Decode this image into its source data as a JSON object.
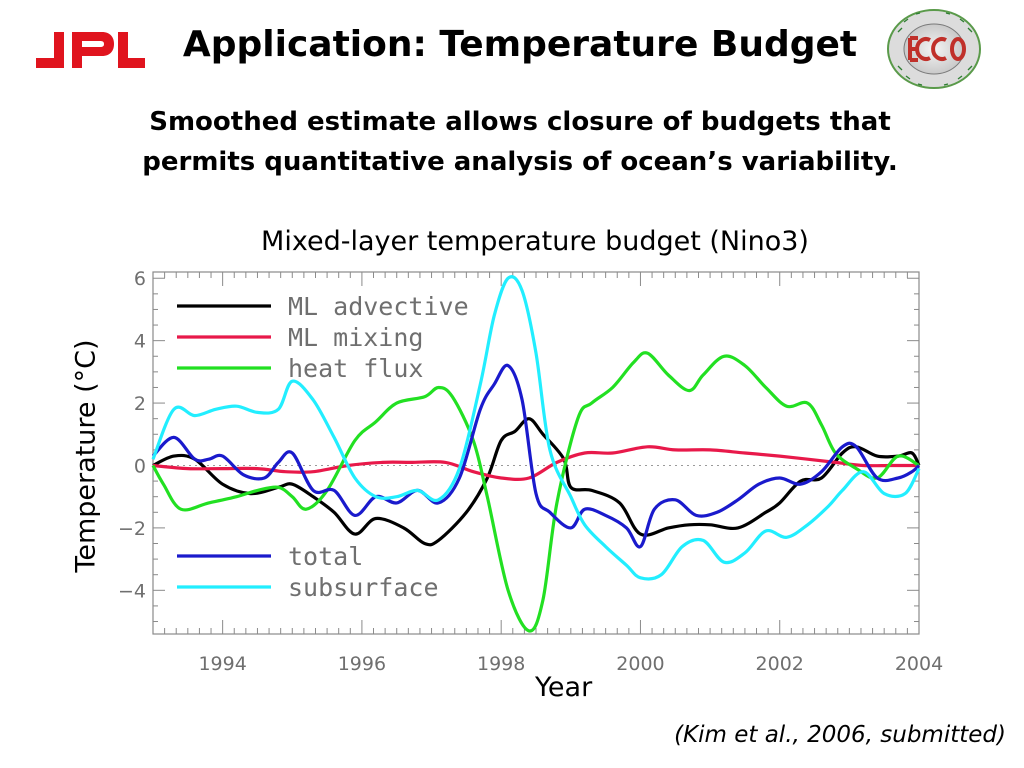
{
  "header": {
    "logo_text": "JPL",
    "seal_text": "ECCO",
    "title": "Application: Temperature Budget"
  },
  "subtitle_lines": [
    "Smoothed estimate allows closure of budgets that",
    "permits quantitative analysis of ocean’s variability."
  ],
  "citation": "(Kim et al., 2006, submitted)",
  "colors": {
    "ml_advective": "#000000",
    "ml_mixing": "#e8194a",
    "heat_flux": "#22e022",
    "total": "#1a1acc",
    "subsurface": "#22eeff",
    "jpl_red": "#e0141e"
  },
  "chart_data": {
    "type": "line",
    "title": "Mixed-layer temperature budget (Nino3)",
    "xlabel": "Year",
    "ylabel": "Temperature (°C)",
    "xlim": [
      1993.0,
      2004.0
    ],
    "ylim": [
      -5.4,
      6.2
    ],
    "x_ticks": [
      1994,
      1996,
      1998,
      2000,
      2002,
      2004
    ],
    "y_ticks": [
      6,
      4,
      2,
      0,
      -2,
      -4
    ],
    "grid": false,
    "zero_line": "dotted",
    "legend": [
      {
        "position": "upper-left",
        "entries": [
          "ML advective",
          "ML mixing",
          "heat flux"
        ]
      },
      {
        "position": "lower-left",
        "entries": [
          "total",
          "subsurface"
        ]
      }
    ],
    "series": [
      {
        "name": "ML advective",
        "key": "ml_advective",
        "points": [
          [
            1993.0,
            0.0
          ],
          [
            1993.3,
            0.3
          ],
          [
            1993.6,
            0.2
          ],
          [
            1994.0,
            -0.6
          ],
          [
            1994.4,
            -0.9
          ],
          [
            1994.8,
            -0.7
          ],
          [
            1995.0,
            -0.6
          ],
          [
            1995.3,
            -1.0
          ],
          [
            1995.6,
            -1.5
          ],
          [
            1995.9,
            -2.2
          ],
          [
            1996.2,
            -1.7
          ],
          [
            1996.6,
            -2.0
          ],
          [
            1996.9,
            -2.5
          ],
          [
            1997.1,
            -2.4
          ],
          [
            1997.5,
            -1.5
          ],
          [
            1997.8,
            -0.4
          ],
          [
            1998.0,
            0.8
          ],
          [
            1998.2,
            1.1
          ],
          [
            1998.4,
            1.5
          ],
          [
            1998.6,
            1.0
          ],
          [
            1998.9,
            0.2
          ],
          [
            1999.0,
            -0.7
          ],
          [
            1999.3,
            -0.8
          ],
          [
            1999.7,
            -1.2
          ],
          [
            2000.0,
            -2.2
          ],
          [
            2000.4,
            -2.0
          ],
          [
            2000.7,
            -1.9
          ],
          [
            2001.0,
            -1.9
          ],
          [
            2001.4,
            -2.0
          ],
          [
            2001.8,
            -1.5
          ],
          [
            2002.0,
            -1.2
          ],
          [
            2002.3,
            -0.5
          ],
          [
            2002.6,
            -0.4
          ],
          [
            2002.9,
            0.4
          ],
          [
            2003.1,
            0.6
          ],
          [
            2003.4,
            0.3
          ],
          [
            2003.7,
            0.3
          ],
          [
            2003.9,
            0.4
          ],
          [
            2004.0,
            0.0
          ]
        ]
      },
      {
        "name": "ML mixing",
        "key": "ml_mixing",
        "points": [
          [
            1993.0,
            0.0
          ],
          [
            1993.5,
            -0.1
          ],
          [
            1994.0,
            -0.1
          ],
          [
            1994.5,
            -0.1
          ],
          [
            1994.9,
            -0.2
          ],
          [
            1995.3,
            -0.2
          ],
          [
            1995.8,
            0.0
          ],
          [
            1996.3,
            0.1
          ],
          [
            1996.7,
            0.1
          ],
          [
            1997.2,
            0.1
          ],
          [
            1997.6,
            -0.2
          ],
          [
            1998.0,
            -0.4
          ],
          [
            1998.4,
            -0.4
          ],
          [
            1998.8,
            0.1
          ],
          [
            1999.2,
            0.4
          ],
          [
            1999.6,
            0.4
          ],
          [
            2000.1,
            0.6
          ],
          [
            2000.5,
            0.5
          ],
          [
            2001.0,
            0.5
          ],
          [
            2001.5,
            0.4
          ],
          [
            2002.0,
            0.3
          ],
          [
            2002.4,
            0.2
          ],
          [
            2002.8,
            0.1
          ],
          [
            2003.2,
            0.0
          ],
          [
            2003.6,
            0.0
          ],
          [
            2004.0,
            0.0
          ]
        ]
      },
      {
        "name": "heat flux",
        "key": "heat_flux",
        "points": [
          [
            1993.0,
            0.0
          ],
          [
            1993.15,
            -0.6
          ],
          [
            1993.4,
            -1.4
          ],
          [
            1993.8,
            -1.2
          ],
          [
            1994.2,
            -1.0
          ],
          [
            1994.5,
            -0.8
          ],
          [
            1994.8,
            -0.7
          ],
          [
            1995.0,
            -1.0
          ],
          [
            1995.2,
            -1.4
          ],
          [
            1995.5,
            -0.8
          ],
          [
            1995.9,
            0.8
          ],
          [
            1996.2,
            1.4
          ],
          [
            1996.5,
            2.0
          ],
          [
            1996.9,
            2.2
          ],
          [
            1997.1,
            2.5
          ],
          [
            1997.3,
            2.2
          ],
          [
            1997.6,
            0.8
          ],
          [
            1997.8,
            -1.0
          ],
          [
            1998.1,
            -4.0
          ],
          [
            1998.4,
            -5.3
          ],
          [
            1998.6,
            -4.3
          ],
          [
            1998.8,
            -1.2
          ],
          [
            1999.1,
            1.5
          ],
          [
            1999.3,
            2.0
          ],
          [
            1999.6,
            2.5
          ],
          [
            1999.9,
            3.3
          ],
          [
            2000.1,
            3.6
          ],
          [
            2000.4,
            2.9
          ],
          [
            2000.7,
            2.4
          ],
          [
            2000.9,
            2.9
          ],
          [
            2001.2,
            3.5
          ],
          [
            2001.5,
            3.2
          ],
          [
            2001.8,
            2.5
          ],
          [
            2002.1,
            1.9
          ],
          [
            2002.4,
            2.0
          ],
          [
            2002.6,
            1.3
          ],
          [
            2002.8,
            0.4
          ],
          [
            2003.1,
            -0.1
          ],
          [
            2003.4,
            -0.4
          ],
          [
            2003.7,
            0.3
          ],
          [
            2004.0,
            0.0
          ]
        ]
      },
      {
        "name": "total",
        "key": "total",
        "points": [
          [
            1993.0,
            0.3
          ],
          [
            1993.3,
            0.9
          ],
          [
            1993.6,
            0.2
          ],
          [
            1993.8,
            0.2
          ],
          [
            1994.0,
            0.3
          ],
          [
            1994.3,
            -0.3
          ],
          [
            1994.6,
            -0.4
          ],
          [
            1994.8,
            0.1
          ],
          [
            1995.0,
            0.4
          ],
          [
            1995.3,
            -0.8
          ],
          [
            1995.6,
            -0.8
          ],
          [
            1995.9,
            -1.6
          ],
          [
            1996.2,
            -1.0
          ],
          [
            1996.5,
            -1.2
          ],
          [
            1996.8,
            -0.8
          ],
          [
            1997.1,
            -1.2
          ],
          [
            1997.4,
            -0.4
          ],
          [
            1997.7,
            1.8
          ],
          [
            1997.9,
            2.6
          ],
          [
            1998.1,
            3.2
          ],
          [
            1998.3,
            2.1
          ],
          [
            1998.5,
            -0.9
          ],
          [
            1998.7,
            -1.5
          ],
          [
            1999.0,
            -2.0
          ],
          [
            1999.2,
            -1.4
          ],
          [
            1999.5,
            -1.6
          ],
          [
            1999.8,
            -2.0
          ],
          [
            2000.0,
            -2.6
          ],
          [
            2000.2,
            -1.4
          ],
          [
            2000.5,
            -1.1
          ],
          [
            2000.8,
            -1.6
          ],
          [
            2001.1,
            -1.5
          ],
          [
            2001.4,
            -1.1
          ],
          [
            2001.7,
            -0.6
          ],
          [
            2002.0,
            -0.4
          ],
          [
            2002.3,
            -0.6
          ],
          [
            2002.6,
            -0.2
          ],
          [
            2002.9,
            0.6
          ],
          [
            2003.1,
            0.6
          ],
          [
            2003.4,
            -0.4
          ],
          [
            2003.7,
            -0.4
          ],
          [
            2003.9,
            -0.2
          ],
          [
            2004.0,
            0.0
          ]
        ]
      },
      {
        "name": "subsurface",
        "key": "subsurface",
        "points": [
          [
            1993.0,
            0.2
          ],
          [
            1993.3,
            1.8
          ],
          [
            1993.6,
            1.6
          ],
          [
            1993.9,
            1.8
          ],
          [
            1994.2,
            1.9
          ],
          [
            1994.5,
            1.7
          ],
          [
            1994.8,
            1.8
          ],
          [
            1995.0,
            2.7
          ],
          [
            1995.3,
            2.1
          ],
          [
            1995.6,
            0.9
          ],
          [
            1995.9,
            -0.4
          ],
          [
            1996.2,
            -1.0
          ],
          [
            1996.5,
            -1.0
          ],
          [
            1996.8,
            -0.8
          ],
          [
            1997.1,
            -1.1
          ],
          [
            1997.4,
            -0.1
          ],
          [
            1997.7,
            2.6
          ],
          [
            1997.9,
            4.8
          ],
          [
            1998.1,
            6.0
          ],
          [
            1998.3,
            5.6
          ],
          [
            1998.5,
            3.6
          ],
          [
            1998.7,
            0.5
          ],
          [
            1999.0,
            -1.0
          ],
          [
            1999.2,
            -1.9
          ],
          [
            1999.5,
            -2.6
          ],
          [
            1999.8,
            -3.2
          ],
          [
            2000.0,
            -3.6
          ],
          [
            2000.3,
            -3.5
          ],
          [
            2000.6,
            -2.6
          ],
          [
            2000.9,
            -2.4
          ],
          [
            2001.2,
            -3.1
          ],
          [
            2001.5,
            -2.8
          ],
          [
            2001.8,
            -2.1
          ],
          [
            2002.1,
            -2.3
          ],
          [
            2002.4,
            -1.9
          ],
          [
            2002.7,
            -1.3
          ],
          [
            2002.9,
            -0.8
          ],
          [
            2003.2,
            -0.2
          ],
          [
            2003.5,
            -0.9
          ],
          [
            2003.8,
            -0.9
          ],
          [
            2004.0,
            -0.1
          ]
        ]
      }
    ]
  }
}
